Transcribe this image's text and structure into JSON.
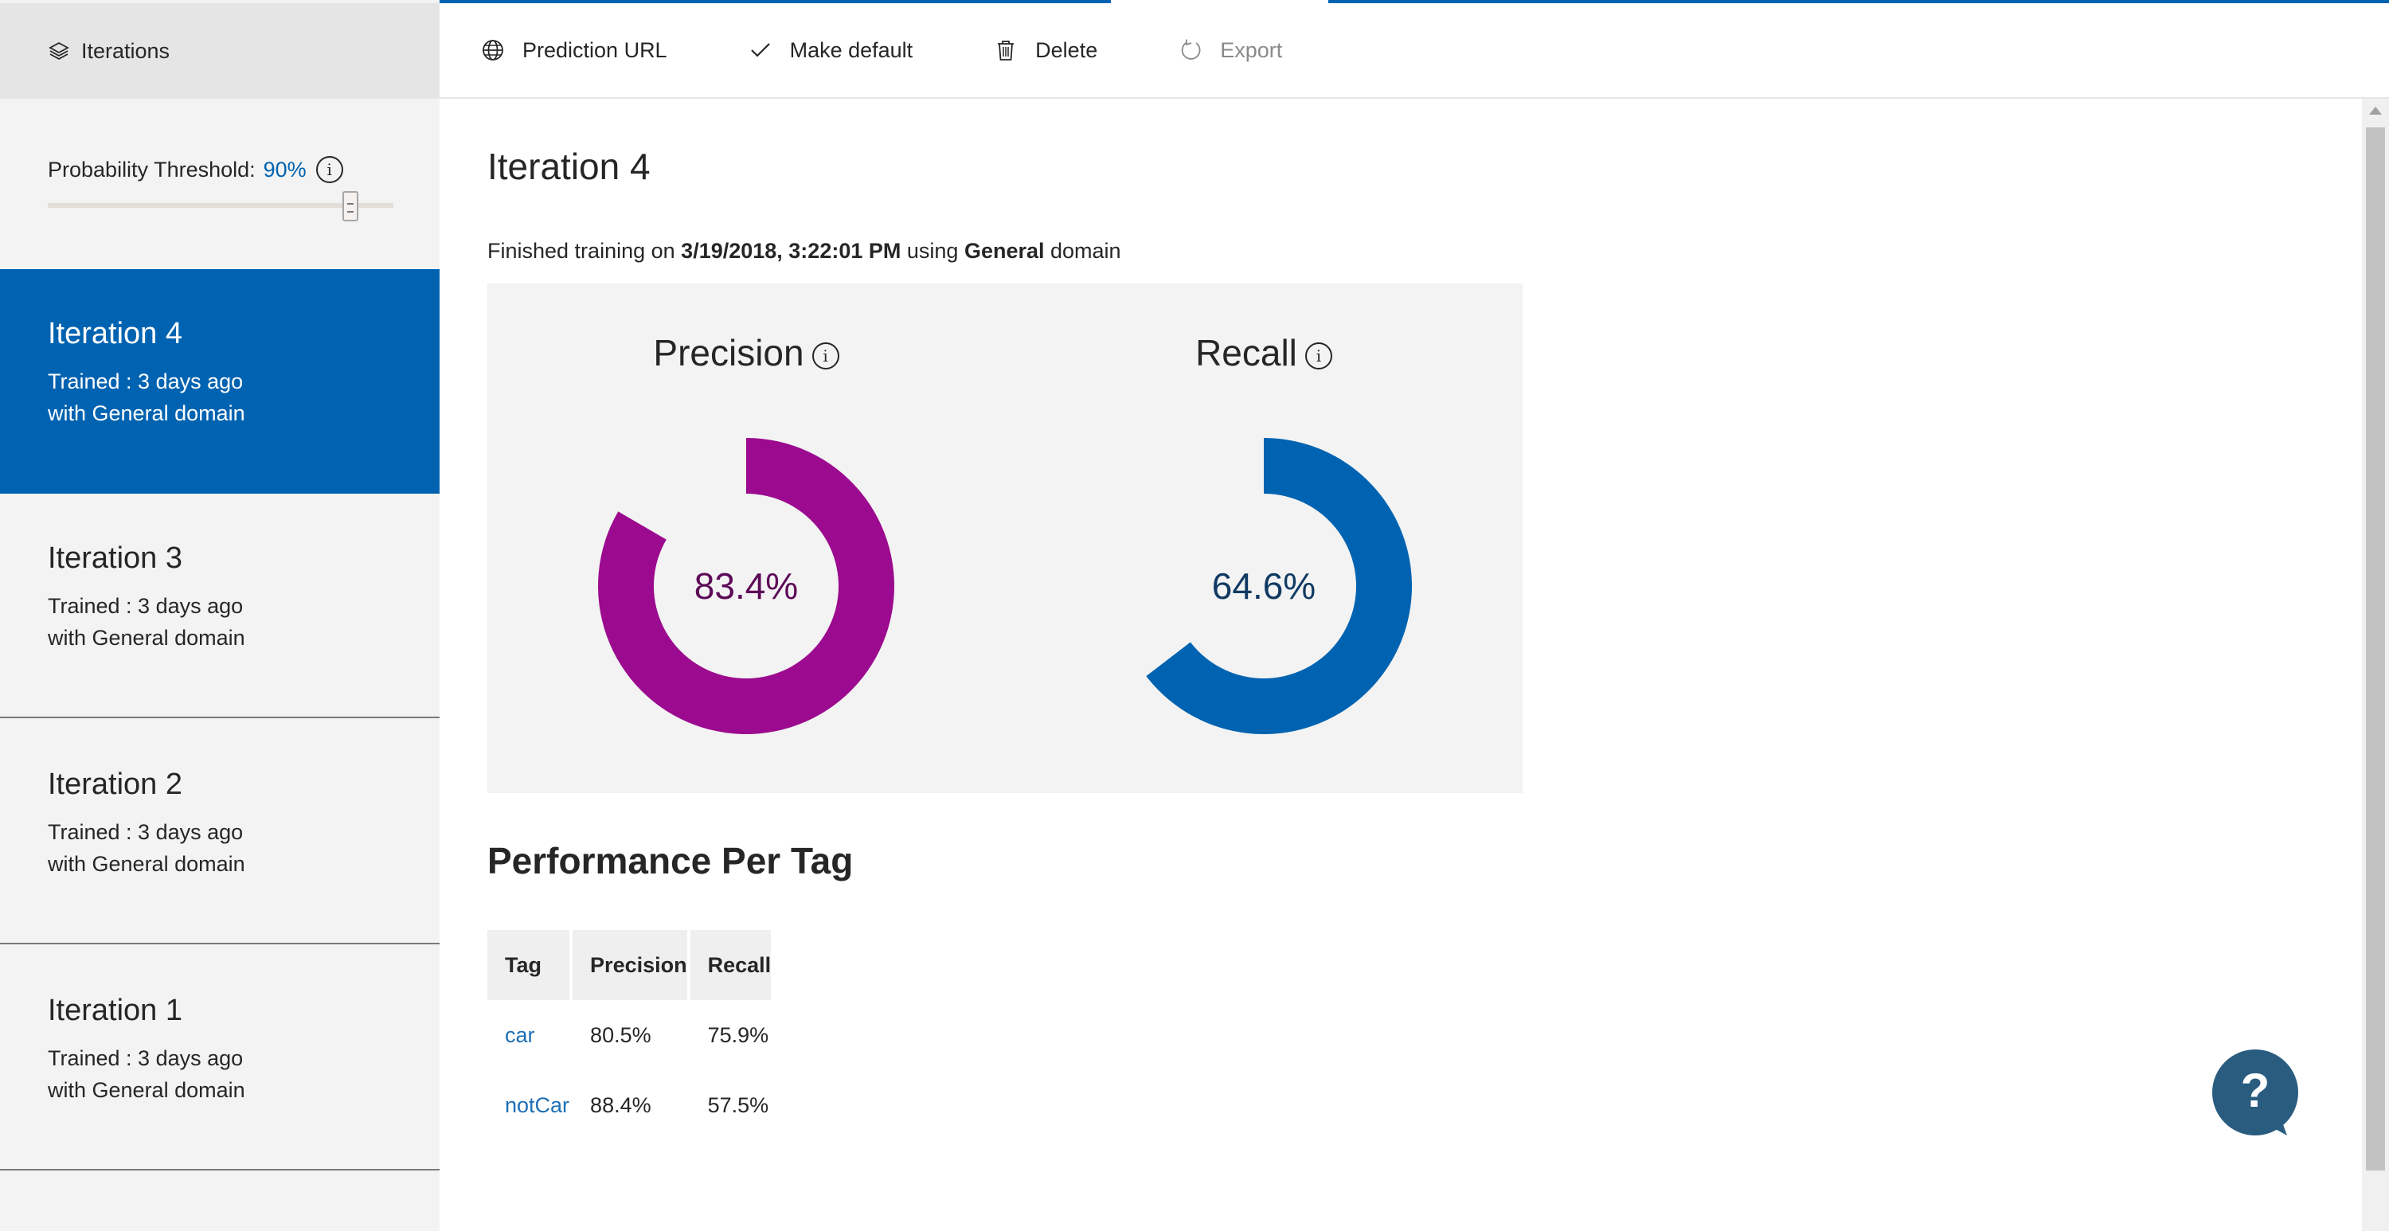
{
  "sidebar": {
    "header_title": "Iterations",
    "threshold": {
      "label": "Probability Threshold:",
      "value": "90%",
      "fraction": 0.9
    },
    "iterations": [
      {
        "name": "Iteration 4",
        "line1": "Trained : 3 days ago",
        "line2": "with General domain",
        "active": true
      },
      {
        "name": "Iteration 3",
        "line1": "Trained : 3 days ago",
        "line2": "with General domain",
        "active": false
      },
      {
        "name": "Iteration 2",
        "line1": "Trained : 3 days ago",
        "line2": "with General domain",
        "active": false
      },
      {
        "name": "Iteration 1",
        "line1": "Trained : 3 days ago",
        "line2": "with General domain",
        "active": false
      }
    ]
  },
  "toolbar": {
    "prediction_url": "Prediction URL",
    "make_default": "Make default",
    "delete": "Delete",
    "export": "Export"
  },
  "main": {
    "title": "Iteration 4",
    "trained_prefix": "Finished training on",
    "trained_date": "3/19/2018, 3:22:01 PM",
    "trained_using": "using",
    "trained_domain": "General",
    "trained_suffix": "domain",
    "precision": {
      "title": "Precision",
      "label": "83.4%",
      "value": 0.834,
      "color": "#9b0a8f",
      "text_color": "#5c0a57"
    },
    "recall": {
      "title": "Recall",
      "label": "64.6%",
      "value": 0.646,
      "color": "#0063b1",
      "text_color": "#103a63"
    },
    "perf_title": "Performance Per Tag",
    "table": {
      "headers": [
        "Tag",
        "Precision",
        "Recall"
      ],
      "rows": [
        {
          "tag": "car",
          "precision": "80.5%",
          "recall": "75.9%"
        },
        {
          "tag": "notCar",
          "precision": "88.4%",
          "recall": "57.5%"
        }
      ]
    }
  },
  "help": {
    "glyph": "?"
  },
  "icons": {
    "header": "layers-icon",
    "prediction_url": "globe-icon",
    "make_default": "checkmark-icon",
    "delete": "trash-icon",
    "export": "refresh-icon",
    "help": "help-chat-icon"
  },
  "colors": {
    "accent": "#0063b1",
    "precision": "#9b0a8f",
    "recall": "#0063b1",
    "link": "#1e6fb5"
  }
}
